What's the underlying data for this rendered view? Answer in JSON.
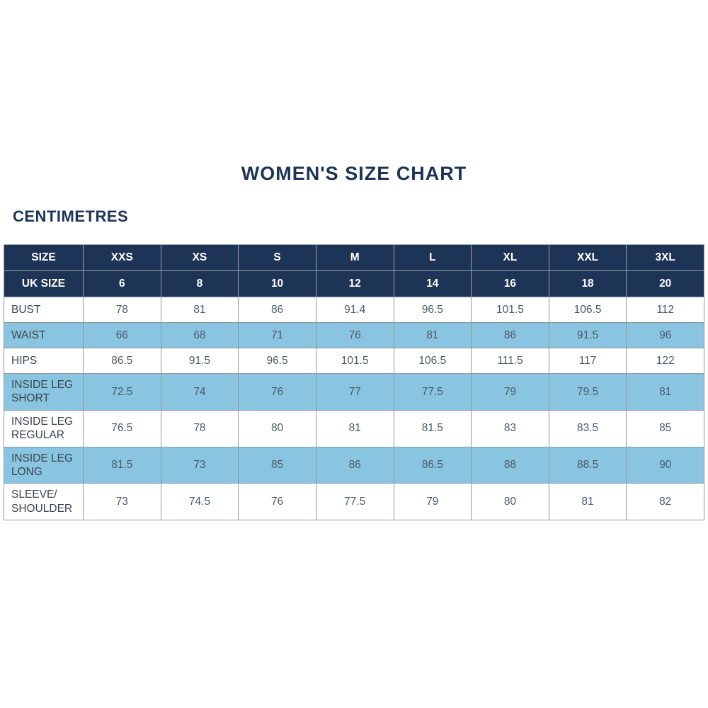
{
  "page": {
    "title": "WOMEN'S SIZE CHART",
    "subtitle": "CENTIMETRES"
  },
  "colors": {
    "header_navy": "#1e3456",
    "stripe_blue": "#89c5e1",
    "title_navy": "#1c3358",
    "border_gray": "#8d99a3",
    "value_text": "#4a5a6a"
  },
  "chart_data": {
    "type": "table",
    "title": "WOMEN'S SIZE CHART",
    "unit_label": "CENTIMETRES",
    "header_rows": [
      {
        "label": "SIZE",
        "values": [
          "XXS",
          "XS",
          "S",
          "M",
          "L",
          "XL",
          "XXL",
          "3XL"
        ]
      },
      {
        "label": "UK SIZE",
        "values": [
          "6",
          "8",
          "10",
          "12",
          "14",
          "16",
          "18",
          "20"
        ]
      }
    ],
    "rows": [
      {
        "label": "BUST",
        "values": [
          "78",
          "81",
          "86",
          "91.4",
          "96.5",
          "101.5",
          "106.5",
          "112"
        ]
      },
      {
        "label": "WAIST",
        "values": [
          "66",
          "68",
          "71",
          "76",
          "81",
          "86",
          "91.5",
          "96"
        ]
      },
      {
        "label": "HIPS",
        "values": [
          "86.5",
          "91.5",
          "96.5",
          "101.5",
          "106.5",
          "111.5",
          "117",
          "122"
        ]
      },
      {
        "label": "INSIDE LEG SHORT",
        "values": [
          "72.5",
          "74",
          "76",
          "77",
          "77.5",
          "79",
          "79.5",
          "81"
        ]
      },
      {
        "label": "INSIDE LEG REGULAR",
        "values": [
          "76.5",
          "78",
          "80",
          "81",
          "81.5",
          "83",
          "83.5",
          "85"
        ]
      },
      {
        "label": "INSIDE LEG LONG",
        "values": [
          "81.5",
          "73",
          "85",
          "86",
          "86.5",
          "88",
          "88.5",
          "90"
        ]
      },
      {
        "label": "SLEEVE/ SHOULDER",
        "values": [
          "73",
          "74.5",
          "76",
          "77.5",
          "79",
          "80",
          "81",
          "82"
        ]
      }
    ]
  }
}
